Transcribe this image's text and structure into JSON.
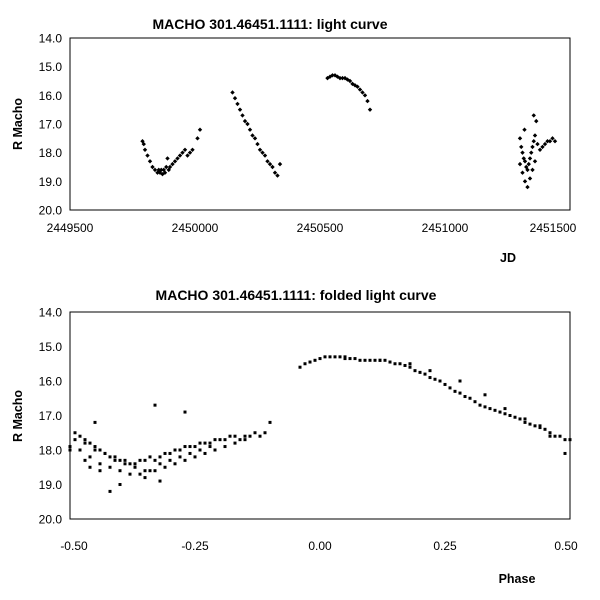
{
  "chart_data": [
    {
      "type": "scatter",
      "title": "MACHO 301.46451.1111: light curve",
      "xlabel": "JD",
      "ylabel": "R Macho",
      "xlim": [
        2449500,
        2451500
      ],
      "ylim": [
        14.0,
        20.0
      ],
      "y_inverted": true,
      "x_ticks": [
        "2449500",
        "2450000",
        "2450500",
        "2451000",
        "2451500"
      ],
      "y_ticks": [
        "14.0",
        "15.0",
        "16.0",
        "17.0",
        "18.0",
        "19.0",
        "20.0"
      ],
      "marker": "diamond",
      "grid": false,
      "series": [
        {
          "x": [
            2449790,
            2449795,
            2449800,
            2449810,
            2449820,
            2449830,
            2449840,
            2449850,
            2449855,
            2449860,
            2449865,
            2449870,
            2449875,
            2449880,
            2449885,
            2449890,
            2449895,
            2449900,
            2449910,
            2449920,
            2449930,
            2449940,
            2449950,
            2449960,
            2449970,
            2449980,
            2449990,
            2450010,
            2450020,
            2450150,
            2450160,
            2450170,
            2450180,
            2450190,
            2450200,
            2450210,
            2450220,
            2450230,
            2450240,
            2450250,
            2450260,
            2450270,
            2450280,
            2450290,
            2450300,
            2450310,
            2450320,
            2450330,
            2450340,
            2450530,
            2450540,
            2450550,
            2450560,
            2450570,
            2450580,
            2450590,
            2450600,
            2450610,
            2450620,
            2450630,
            2450640,
            2450650,
            2450660,
            2450670,
            2450680,
            2450690,
            2450700,
            2451300,
            2451305,
            2451310,
            2451315,
            2451320,
            2451325,
            2451330,
            2451335,
            2451340,
            2451345,
            2451350,
            2451355,
            2451360,
            2451370,
            2451380,
            2451390,
            2451400,
            2451410,
            2451420,
            2451430,
            2451440,
            2451300,
            2451310,
            2451320,
            2451330,
            2451340,
            2451350,
            2451360,
            2451318,
            2451355,
            2451365
          ],
          "y": [
            17.6,
            17.7,
            17.9,
            18.1,
            18.3,
            18.5,
            18.6,
            18.7,
            18.6,
            18.7,
            18.6,
            18.75,
            18.6,
            18.7,
            18.5,
            18.2,
            18.6,
            18.5,
            18.4,
            18.3,
            18.2,
            18.1,
            18.0,
            17.9,
            18.1,
            18.0,
            17.9,
            17.5,
            17.2,
            15.9,
            16.1,
            16.3,
            16.5,
            16.7,
            16.9,
            17.0,
            17.2,
            17.4,
            17.5,
            17.7,
            17.9,
            18.0,
            18.1,
            18.3,
            18.4,
            18.5,
            18.7,
            18.8,
            18.4,
            15.4,
            15.35,
            15.3,
            15.3,
            15.35,
            15.4,
            15.4,
            15.4,
            15.45,
            15.5,
            15.6,
            15.65,
            15.7,
            15.8,
            15.9,
            16.0,
            16.2,
            16.5,
            17.5,
            17.8,
            18.0,
            18.2,
            18.3,
            18.5,
            18.6,
            18.4,
            18.2,
            18.0,
            17.8,
            17.6,
            17.4,
            17.7,
            17.9,
            17.8,
            17.7,
            17.6,
            17.6,
            17.5,
            17.6,
            18.4,
            18.7,
            19.0,
            19.2,
            18.9,
            18.6,
            18.3,
            17.2,
            16.7,
            16.9
          ]
        }
      ]
    },
    {
      "type": "scatter",
      "title": "MACHO 301.46451.1111: folded light curve",
      "xlabel": "Phase",
      "ylabel": "R Macho",
      "xlim": [
        -0.5,
        0.5
      ],
      "ylim": [
        14.0,
        20.0
      ],
      "y_inverted": true,
      "x_ticks": [
        "-0.50",
        "-0.25",
        "0.00",
        "0.25",
        "0.50"
      ],
      "y_ticks": [
        "14.0",
        "15.0",
        "16.0",
        "17.0",
        "18.0",
        "19.0",
        "20.0"
      ],
      "marker": "square",
      "grid": false,
      "series": [
        {
          "x": [
            -0.5,
            -0.49,
            -0.48,
            -0.47,
            -0.46,
            -0.45,
            -0.44,
            -0.43,
            -0.42,
            -0.41,
            -0.4,
            -0.39,
            -0.38,
            -0.37,
            -0.36,
            -0.35,
            -0.34,
            -0.33,
            -0.32,
            -0.31,
            -0.3,
            -0.29,
            -0.28,
            -0.27,
            -0.26,
            -0.25,
            -0.24,
            -0.23,
            -0.22,
            -0.21,
            -0.2,
            -0.19,
            -0.18,
            -0.17,
            -0.16,
            -0.15,
            -0.14,
            -0.13,
            -0.12,
            -0.11,
            -0.1,
            -0.49,
            -0.47,
            -0.45,
            -0.43,
            -0.41,
            -0.39,
            -0.37,
            -0.35,
            -0.33,
            -0.31,
            -0.29,
            -0.27,
            -0.25,
            -0.23,
            -0.21,
            -0.19,
            -0.17,
            -0.15,
            -0.48,
            -0.46,
            -0.44,
            -0.42,
            -0.4,
            -0.38,
            -0.36,
            -0.34,
            -0.32,
            -0.3,
            -0.28,
            -0.26,
            -0.24,
            -0.22,
            -0.45,
            -0.33,
            -0.27,
            -0.42,
            -0.4,
            -0.35,
            -0.32,
            -0.5,
            -0.47,
            -0.46,
            -0.44
          ],
          "y": [
            17.9,
            17.5,
            17.6,
            17.7,
            17.8,
            17.9,
            18.0,
            18.1,
            18.2,
            18.2,
            18.3,
            18.3,
            18.4,
            18.4,
            18.3,
            18.3,
            18.2,
            18.3,
            18.2,
            18.1,
            18.1,
            18.0,
            18.0,
            17.9,
            17.9,
            17.9,
            17.8,
            17.8,
            17.8,
            17.7,
            17.7,
            17.7,
            17.6,
            17.6,
            17.7,
            17.6,
            17.6,
            17.5,
            17.6,
            17.5,
            17.2,
            17.7,
            17.8,
            18.0,
            18.1,
            18.3,
            18.4,
            18.5,
            18.6,
            18.6,
            18.5,
            18.4,
            18.3,
            18.2,
            18.1,
            18.0,
            17.9,
            17.8,
            17.7,
            18.0,
            18.2,
            18.4,
            18.5,
            18.6,
            18.7,
            18.7,
            18.6,
            18.4,
            18.3,
            18.2,
            18.1,
            18.0,
            17.9,
            17.2,
            16.7,
            16.9,
            19.2,
            19.0,
            18.8,
            18.9,
            18.0,
            18.3,
            18.5,
            18.6
          ]
        },
        {
          "x": [
            -0.04,
            -0.03,
            -0.02,
            -0.01,
            0.0,
            0.01,
            0.02,
            0.03,
            0.04,
            0.05,
            0.06,
            0.07,
            0.08,
            0.09,
            0.1,
            0.11,
            0.12,
            0.13,
            0.14,
            0.15,
            0.16,
            0.17,
            0.18,
            0.19,
            0.2,
            0.21,
            0.22,
            0.23,
            0.24,
            0.25,
            0.26,
            0.27,
            0.28,
            0.29,
            0.3,
            0.31,
            0.32,
            0.33,
            0.34,
            0.35,
            0.36,
            0.37,
            0.38,
            0.39,
            0.4,
            0.41,
            0.42,
            0.43,
            0.44,
            0.45,
            0.46,
            0.47,
            0.48,
            0.49,
            0.5,
            0.05,
            0.12,
            0.18,
            0.22,
            0.28,
            0.33,
            0.37,
            0.41,
            0.44,
            0.46,
            0.49
          ],
          "y": [
            15.6,
            15.5,
            15.45,
            15.4,
            15.35,
            15.3,
            15.3,
            15.3,
            15.3,
            15.35,
            15.35,
            15.35,
            15.4,
            15.4,
            15.4,
            15.4,
            15.4,
            15.4,
            15.45,
            15.5,
            15.5,
            15.55,
            15.6,
            15.7,
            15.75,
            15.8,
            15.9,
            15.95,
            16.0,
            16.1,
            16.2,
            16.3,
            16.35,
            16.45,
            16.5,
            16.6,
            16.7,
            16.75,
            16.8,
            16.85,
            16.9,
            16.95,
            17.0,
            17.05,
            17.1,
            17.2,
            17.25,
            17.3,
            17.35,
            17.4,
            17.5,
            17.6,
            17.6,
            17.7,
            17.7,
            15.3,
            15.4,
            15.5,
            15.7,
            16.0,
            16.4,
            16.8,
            17.1,
            17.3,
            17.6,
            18.1
          ]
        }
      ]
    }
  ]
}
